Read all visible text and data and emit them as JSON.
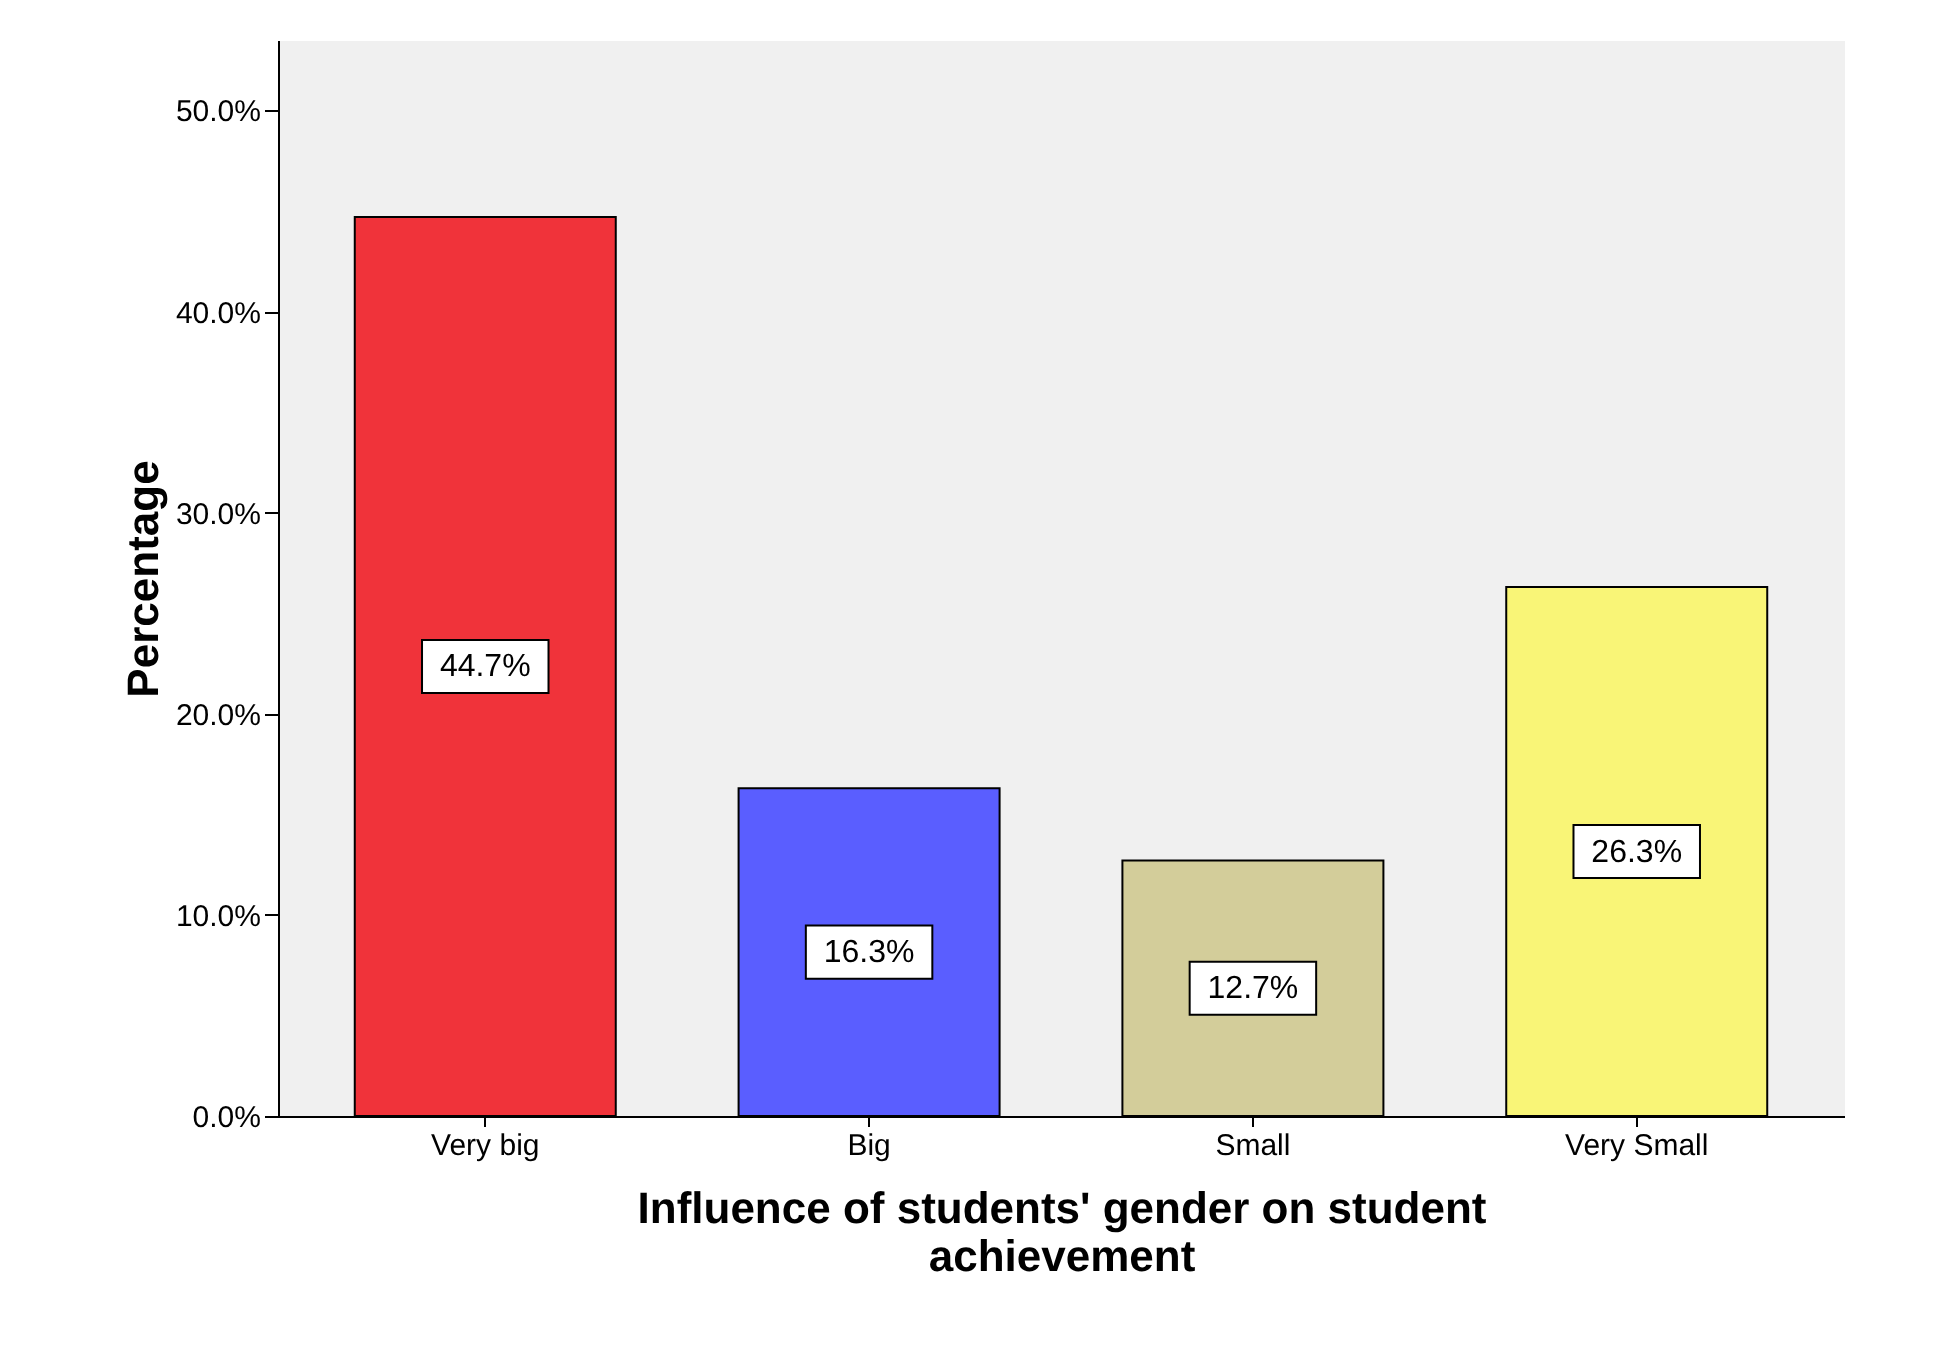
{
  "chart_data": {
    "type": "bar",
    "xlabel": "Influence of students' gender  on student achievement",
    "ylabel": "Percentage",
    "categories": [
      "Very big",
      "Big",
      "Small",
      "Very Small"
    ],
    "values": [
      44.7,
      16.3,
      12.7,
      26.3
    ],
    "colors": [
      "#f0333a",
      "#5a5eff",
      "#d3cd9a",
      "#f9f577"
    ],
    "value_labels": [
      "44.7%",
      "16.3%",
      "12.7%",
      "26.3%"
    ],
    "ylim": [
      0,
      53.5
    ],
    "yticks": [
      {
        "value": 0,
        "label": "0.0%"
      },
      {
        "value": 10,
        "label": "10.0%"
      },
      {
        "value": 20,
        "label": "20.0%"
      },
      {
        "value": 30,
        "label": "30.0%"
      },
      {
        "value": 40,
        "label": "40.0%"
      },
      {
        "value": 50,
        "label": "50.0%"
      }
    ],
    "grid": false
  }
}
